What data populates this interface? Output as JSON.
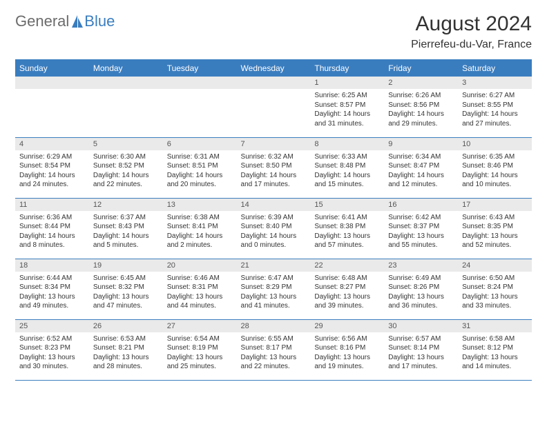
{
  "brand": {
    "part1": "General",
    "part2": "Blue"
  },
  "title": "August 2024",
  "location": "Pierrefeu-du-Var, France",
  "colors": {
    "accent": "#3a7dbf",
    "header_text": "#ffffff",
    "daynum_bg": "#eaeaea",
    "text": "#333333",
    "logo_gray": "#6b6b6b"
  },
  "weekdays": [
    "Sunday",
    "Monday",
    "Tuesday",
    "Wednesday",
    "Thursday",
    "Friday",
    "Saturday"
  ],
  "weeks": [
    [
      null,
      null,
      null,
      null,
      {
        "n": "1",
        "sunrise": "6:25 AM",
        "sunset": "8:57 PM",
        "daylight": "14 hours and 31 minutes."
      },
      {
        "n": "2",
        "sunrise": "6:26 AM",
        "sunset": "8:56 PM",
        "daylight": "14 hours and 29 minutes."
      },
      {
        "n": "3",
        "sunrise": "6:27 AM",
        "sunset": "8:55 PM",
        "daylight": "14 hours and 27 minutes."
      }
    ],
    [
      {
        "n": "4",
        "sunrise": "6:29 AM",
        "sunset": "8:54 PM",
        "daylight": "14 hours and 24 minutes."
      },
      {
        "n": "5",
        "sunrise": "6:30 AM",
        "sunset": "8:52 PM",
        "daylight": "14 hours and 22 minutes."
      },
      {
        "n": "6",
        "sunrise": "6:31 AM",
        "sunset": "8:51 PM",
        "daylight": "14 hours and 20 minutes."
      },
      {
        "n": "7",
        "sunrise": "6:32 AM",
        "sunset": "8:50 PM",
        "daylight": "14 hours and 17 minutes."
      },
      {
        "n": "8",
        "sunrise": "6:33 AM",
        "sunset": "8:48 PM",
        "daylight": "14 hours and 15 minutes."
      },
      {
        "n": "9",
        "sunrise": "6:34 AM",
        "sunset": "8:47 PM",
        "daylight": "14 hours and 12 minutes."
      },
      {
        "n": "10",
        "sunrise": "6:35 AM",
        "sunset": "8:46 PM",
        "daylight": "14 hours and 10 minutes."
      }
    ],
    [
      {
        "n": "11",
        "sunrise": "6:36 AM",
        "sunset": "8:44 PM",
        "daylight": "14 hours and 8 minutes."
      },
      {
        "n": "12",
        "sunrise": "6:37 AM",
        "sunset": "8:43 PM",
        "daylight": "14 hours and 5 minutes."
      },
      {
        "n": "13",
        "sunrise": "6:38 AM",
        "sunset": "8:41 PM",
        "daylight": "14 hours and 2 minutes."
      },
      {
        "n": "14",
        "sunrise": "6:39 AM",
        "sunset": "8:40 PM",
        "daylight": "14 hours and 0 minutes."
      },
      {
        "n": "15",
        "sunrise": "6:41 AM",
        "sunset": "8:38 PM",
        "daylight": "13 hours and 57 minutes."
      },
      {
        "n": "16",
        "sunrise": "6:42 AM",
        "sunset": "8:37 PM",
        "daylight": "13 hours and 55 minutes."
      },
      {
        "n": "17",
        "sunrise": "6:43 AM",
        "sunset": "8:35 PM",
        "daylight": "13 hours and 52 minutes."
      }
    ],
    [
      {
        "n": "18",
        "sunrise": "6:44 AM",
        "sunset": "8:34 PM",
        "daylight": "13 hours and 49 minutes."
      },
      {
        "n": "19",
        "sunrise": "6:45 AM",
        "sunset": "8:32 PM",
        "daylight": "13 hours and 47 minutes."
      },
      {
        "n": "20",
        "sunrise": "6:46 AM",
        "sunset": "8:31 PM",
        "daylight": "13 hours and 44 minutes."
      },
      {
        "n": "21",
        "sunrise": "6:47 AM",
        "sunset": "8:29 PM",
        "daylight": "13 hours and 41 minutes."
      },
      {
        "n": "22",
        "sunrise": "6:48 AM",
        "sunset": "8:27 PM",
        "daylight": "13 hours and 39 minutes."
      },
      {
        "n": "23",
        "sunrise": "6:49 AM",
        "sunset": "8:26 PM",
        "daylight": "13 hours and 36 minutes."
      },
      {
        "n": "24",
        "sunrise": "6:50 AM",
        "sunset": "8:24 PM",
        "daylight": "13 hours and 33 minutes."
      }
    ],
    [
      {
        "n": "25",
        "sunrise": "6:52 AM",
        "sunset": "8:23 PM",
        "daylight": "13 hours and 30 minutes."
      },
      {
        "n": "26",
        "sunrise": "6:53 AM",
        "sunset": "8:21 PM",
        "daylight": "13 hours and 28 minutes."
      },
      {
        "n": "27",
        "sunrise": "6:54 AM",
        "sunset": "8:19 PM",
        "daylight": "13 hours and 25 minutes."
      },
      {
        "n": "28",
        "sunrise": "6:55 AM",
        "sunset": "8:17 PM",
        "daylight": "13 hours and 22 minutes."
      },
      {
        "n": "29",
        "sunrise": "6:56 AM",
        "sunset": "8:16 PM",
        "daylight": "13 hours and 19 minutes."
      },
      {
        "n": "30",
        "sunrise": "6:57 AM",
        "sunset": "8:14 PM",
        "daylight": "13 hours and 17 minutes."
      },
      {
        "n": "31",
        "sunrise": "6:58 AM",
        "sunset": "8:12 PM",
        "daylight": "13 hours and 14 minutes."
      }
    ]
  ],
  "labels": {
    "sunrise": "Sunrise: ",
    "sunset": "Sunset: ",
    "daylight": "Daylight: "
  }
}
